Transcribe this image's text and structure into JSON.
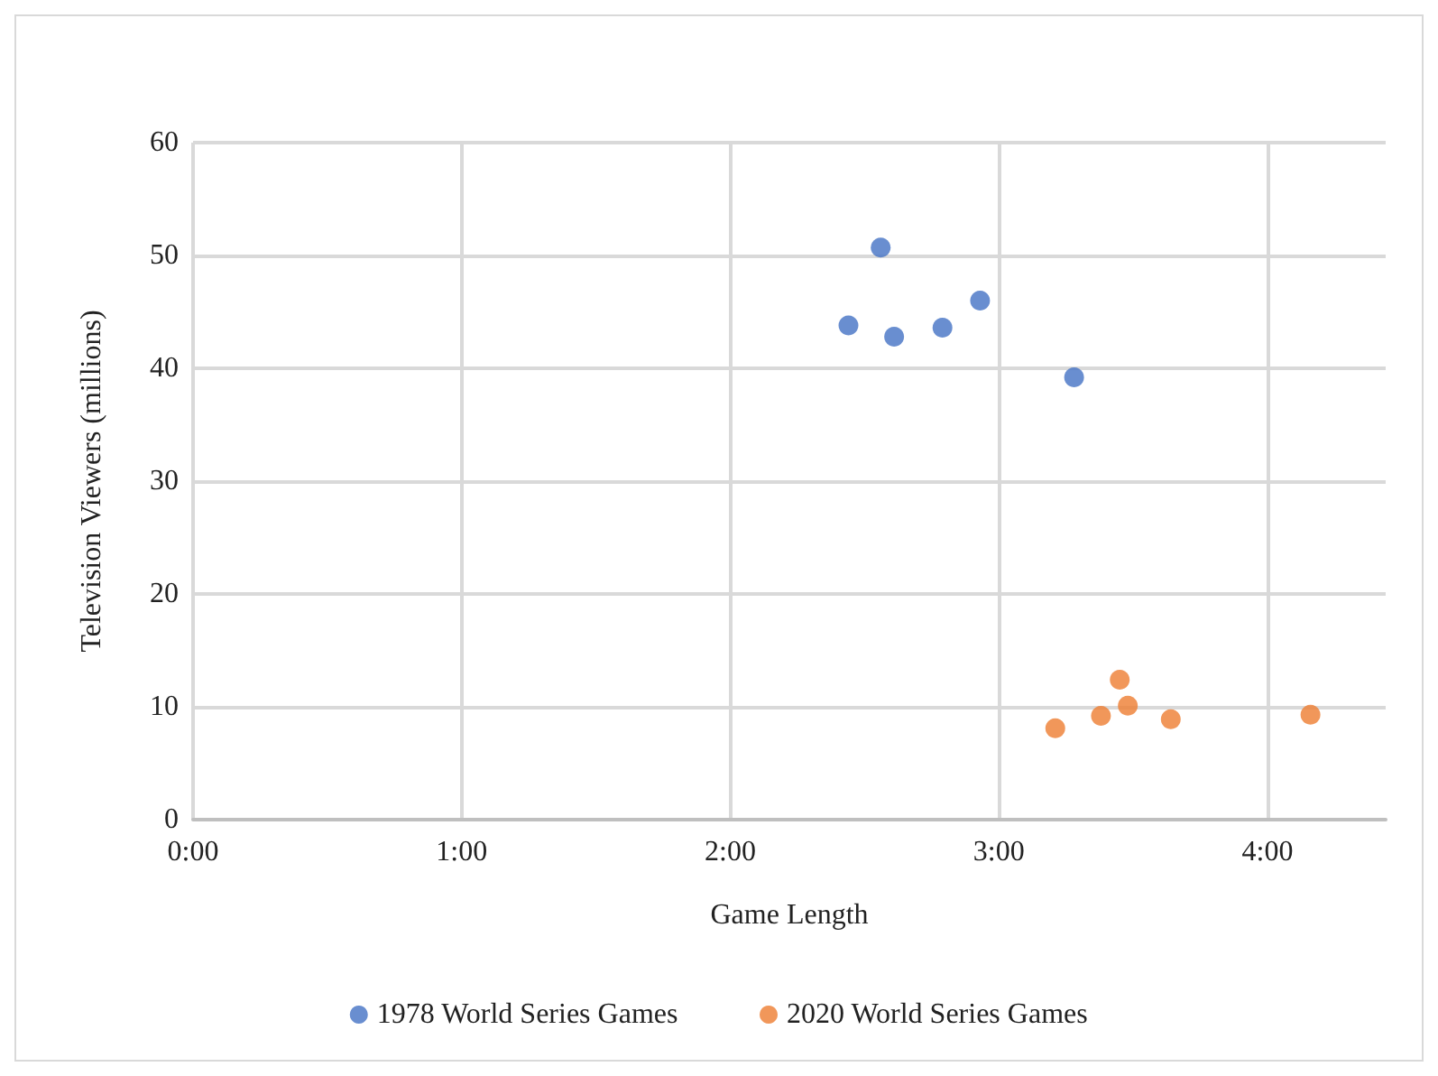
{
  "chart_data": {
    "type": "scatter",
    "xlabel": "Game Length",
    "ylabel": "Television Viewers (millions)",
    "xlim": [
      0,
      4.44
    ],
    "xticks": [
      {
        "value": 0,
        "label": "0:00"
      },
      {
        "value": 1,
        "label": "1:00"
      },
      {
        "value": 2,
        "label": "2:00"
      },
      {
        "value": 3,
        "label": "3:00"
      },
      {
        "value": 4,
        "label": "4:00"
      }
    ],
    "ylim": [
      0,
      60
    ],
    "yticks": [
      0,
      10,
      20,
      30,
      40,
      50,
      60
    ],
    "grid": true,
    "legend": "bottom",
    "marker": "circle",
    "series": [
      {
        "name": "1978 World Series Games",
        "color": "#4472c4",
        "x": [
          2.44,
          2.56,
          2.61,
          2.79,
          2.93,
          3.28
        ],
        "values": [
          43.8,
          50.7,
          42.8,
          43.6,
          46.0,
          39.2
        ]
      },
      {
        "name": "2020 World Series Games",
        "color": "#ed7d31",
        "x": [
          3.21,
          3.38,
          3.45,
          3.48,
          3.64,
          4.16
        ],
        "values": [
          8.1,
          9.2,
          12.4,
          10.1,
          8.9,
          9.3
        ]
      }
    ]
  }
}
